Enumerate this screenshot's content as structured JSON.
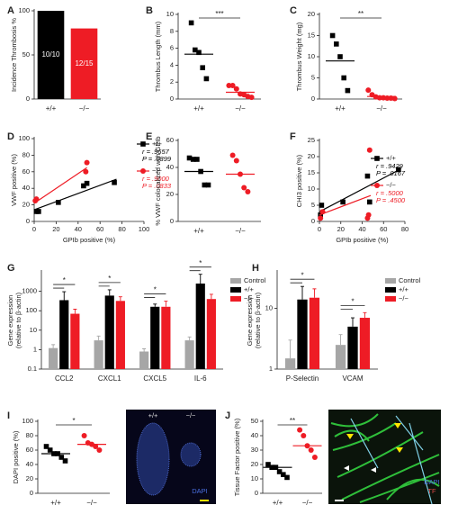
{
  "chart_data": [
    {
      "label": "A",
      "type": "bar",
      "ylabel": "Incidence Thrombosis %",
      "categories": [
        "+/+",
        "−/−"
      ],
      "values": [
        100,
        80
      ],
      "value_labels": [
        "10/10",
        "12/15"
      ],
      "colors": [
        "#000000",
        "#ee1c25"
      ],
      "ylim": [
        0,
        100
      ],
      "yticks": [
        0,
        50,
        100
      ]
    },
    {
      "label": "B",
      "type": "dot",
      "ylabel": "Thrombus Length (mm)",
      "categories": [
        "+/+",
        "−/−"
      ],
      "ylim": [
        0,
        10
      ],
      "yticks": [
        0,
        2,
        4,
        6,
        8,
        10
      ],
      "significance": "***",
      "groups": [
        {
          "color": "#000000",
          "marker": "square",
          "values": [
            9.0,
            5.8,
            5.5,
            3.7,
            2.4
          ],
          "mean": 5.3
        },
        {
          "color": "#ee1c25",
          "marker": "circle",
          "values": [
            1.6,
            1.6,
            1.2,
            0.6,
            0.5,
            0.3,
            0.2
          ],
          "mean": 0.8
        }
      ]
    },
    {
      "label": "C",
      "type": "dot",
      "ylabel": "Thrombus Weight (mg)",
      "categories": [
        "+/+",
        "−/−"
      ],
      "ylim": [
        0,
        20
      ],
      "yticks": [
        0,
        5,
        10,
        15,
        20
      ],
      "significance": "**",
      "groups": [
        {
          "color": "#000000",
          "marker": "square",
          "values": [
            15,
            13,
            10,
            5,
            2
          ],
          "mean": 9
        },
        {
          "color": "#ee1c25",
          "marker": "circle",
          "values": [
            2.1,
            1,
            0.5,
            0.3,
            0.3,
            0.2,
            0.2,
            0.1
          ],
          "mean": 0.6
        }
      ]
    },
    {
      "label": "D",
      "type": "scatter",
      "xlabel": "GPIb positive (%)",
      "ylabel": "VWF positive (%)",
      "xlim": [
        0,
        100
      ],
      "xticks": [
        0,
        20,
        40,
        60,
        80,
        100
      ],
      "ylim": [
        0,
        100
      ],
      "yticks": [
        0,
        20,
        40,
        60,
        80,
        100
      ],
      "series": [
        {
          "name": "+/+",
          "color": "#000000",
          "marker": "square",
          "x": [
            2,
            4,
            22,
            45,
            48,
            73
          ],
          "y": [
            12,
            12,
            23,
            43,
            46,
            47
          ],
          "fit": {
            "x": [
              0,
              75
            ],
            "y": [
              14,
              51
            ]
          },
          "stats": [
            "r = .9657",
            "P = .0899"
          ]
        },
        {
          "name": "−/−",
          "color": "#ee1c25",
          "marker": "circle",
          "x": [
            1,
            2,
            47,
            48
          ],
          "y": [
            25,
            27,
            60,
            71
          ],
          "fit": {
            "x": [
              0,
              48
            ],
            "y": [
              22,
              65
            ]
          },
          "stats": [
            "r = .9000",
            "P = .0833"
          ]
        }
      ]
    },
    {
      "label": "E",
      "type": "dot",
      "ylabel": "% VWF colocalized with GPIb",
      "categories": [
        "+/+",
        "−/−"
      ],
      "ylim": [
        0,
        60
      ],
      "yticks": [
        0,
        20,
        40,
        60
      ],
      "groups": [
        {
          "color": "#000000",
          "marker": "square",
          "values": [
            47,
            46,
            46,
            37,
            27,
            27
          ],
          "mean": 37
        },
        {
          "color": "#ee1c25",
          "marker": "circle",
          "values": [
            49,
            45,
            35,
            25,
            22
          ],
          "mean": 35
        }
      ]
    },
    {
      "label": "F",
      "type": "scatter",
      "xlabel": "GPIb positive (%)",
      "ylabel": "CHI3 positive (%)",
      "xlim": [
        0,
        80
      ],
      "xticks": [
        0,
        20,
        40,
        60,
        80
      ],
      "ylim": [
        0,
        25
      ],
      "yticks": [
        0,
        5,
        10,
        15,
        20,
        25
      ],
      "series": [
        {
          "name": "+/+",
          "color": "#000000",
          "marker": "square",
          "x": [
            1,
            2,
            22,
            45,
            47,
            74
          ],
          "y": [
            2,
            5,
            6,
            14,
            6,
            16
          ],
          "fit": {
            "x": [
              0,
              75
            ],
            "y": [
              3,
              16
            ]
          },
          "stats": [
            "r = .9429",
            "P = .0167"
          ]
        },
        {
          "name": "−/−",
          "color": "#ee1c25",
          "marker": "circle",
          "x": [
            1,
            3,
            45,
            47,
            46
          ],
          "y": [
            1,
            3,
            1,
            22,
            2
          ],
          "fit": {
            "x": [
              0,
              48
            ],
            "y": [
              2,
              8
            ]
          },
          "stats": [
            "r = .5000",
            "P = .4500"
          ]
        }
      ]
    },
    {
      "label": "G",
      "type": "grouped_bar",
      "log_scale": true,
      "ylabel": [
        "Gene expression",
        "(relative to β-actin)"
      ],
      "categories": [
        "CCL2",
        "CXCL1",
        "CXCL5",
        "IL-6"
      ],
      "ylim": [
        0.1,
        10000
      ],
      "yticks": [
        0.1,
        1,
        10,
        100,
        1000
      ],
      "significance": [
        "*",
        "*",
        "*",
        "*"
      ],
      "series": [
        {
          "name": "Control",
          "color": "#a6a6a6",
          "values": [
            1.2,
            3,
            0.8,
            3
          ],
          "errors": [
            0.6,
            2,
            0.3,
            1.5
          ]
        },
        {
          "name": "+/+",
          "color": "#000000",
          "values": [
            350,
            600,
            160,
            2500
          ],
          "errors": [
            600,
            600,
            60,
            5000
          ]
        },
        {
          "name": "−/−",
          "color": "#ee1c25",
          "values": [
            70,
            320,
            160,
            400
          ],
          "errors": [
            50,
            200,
            150,
            300
          ]
        }
      ]
    },
    {
      "label": "H",
      "type": "grouped_bar",
      "log_scale": true,
      "ylabel": [
        "Gene expression",
        "(relative to β-actin)"
      ],
      "categories": [
        "P-Selectin",
        "VCAM"
      ],
      "ylim": [
        1,
        40
      ],
      "yticks": [
        1,
        10
      ],
      "significance": [
        "*",
        "*"
      ],
      "series": [
        {
          "name": "Control",
          "color": "#a6a6a6",
          "values": [
            1.5,
            2.5
          ],
          "errors": [
            1.5,
            1.2
          ]
        },
        {
          "name": "+/+",
          "color": "#000000",
          "values": [
            14,
            5
          ],
          "errors": [
            9,
            2
          ]
        },
        {
          "name": "−/−",
          "color": "#ee1c25",
          "values": [
            15,
            7
          ],
          "errors": [
            6,
            1.5
          ]
        }
      ]
    },
    {
      "label": "I",
      "type": "dot",
      "ylabel": "DAPI positive (%)",
      "categories": [
        "+/+",
        "−/−"
      ],
      "ylim": [
        0,
        100
      ],
      "yticks": [
        0,
        20,
        40,
        60,
        80,
        100
      ],
      "significance": "*",
      "groups": [
        {
          "color": "#000000",
          "marker": "square",
          "values": [
            65,
            60,
            55,
            55,
            50,
            45
          ],
          "mean": 55
        },
        {
          "color": "#ee1c25",
          "marker": "circle",
          "values": [
            80,
            70,
            68,
            65,
            60
          ],
          "mean": 68
        }
      ]
    },
    {
      "label": "J",
      "type": "dot",
      "ylabel": "Tissue Factor positive (%)",
      "categories": [
        "+/+",
        "−/−"
      ],
      "ylim": [
        0,
        50
      ],
      "yticks": [
        0,
        10,
        20,
        30,
        40,
        50
      ],
      "significance": "**",
      "groups": [
        {
          "color": "#000000",
          "marker": "square",
          "values": [
            20,
            18,
            18,
            15,
            13,
            11
          ],
          "mean": 18
        },
        {
          "color": "#ee1c25",
          "marker": "circle",
          "values": [
            44,
            40,
            33,
            30,
            25
          ],
          "mean": 33
        }
      ]
    }
  ],
  "images": [
    {
      "labels": [
        "+/+",
        "−/−",
        "DAPI"
      ]
    },
    {
      "labels": [
        "DAPI",
        "TF"
      ]
    }
  ]
}
